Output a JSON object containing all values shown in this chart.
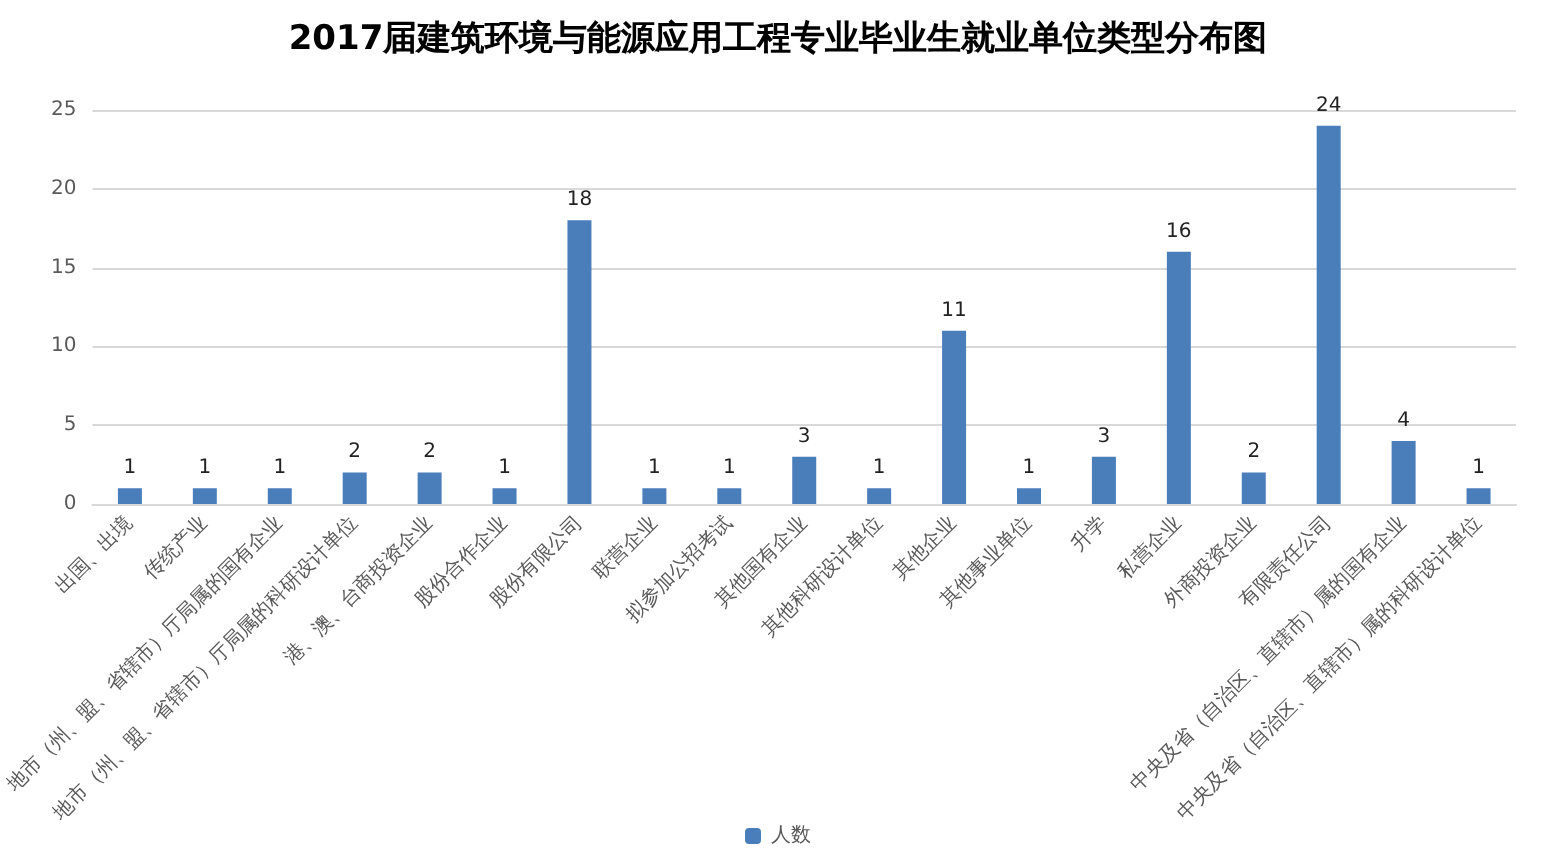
{
  "chart_data": {
    "type": "bar",
    "title": "2017届建筑环境与能源应用工程专业毕业生就业单位类型分布图",
    "categories": [
      "出国、出境",
      "传统产业",
      "地市（州、盟、省辖市）厅局属的国有企业",
      "地市（州、盟、省辖市）厅局属的科研设计单位",
      "港、澳、台商投资企业",
      "股份合作企业",
      "股份有限公司",
      "联营企业",
      "拟参加公招考试",
      "其他国有企业",
      "其他科研设计单位",
      "其他企业",
      "其他事业单位",
      "升学",
      "私营企业",
      "外商投资企业",
      "有限责任公司",
      "中央及省（自治区、直辖市）属的国有企业",
      "中央及省（自治区、直辖市）属的科研设计单位"
    ],
    "series": [
      {
        "name": "人数",
        "color": "#4a7ebb",
        "values": [
          1,
          1,
          1,
          2,
          2,
          1,
          18,
          1,
          1,
          3,
          1,
          11,
          1,
          3,
          16,
          2,
          24,
          4,
          1
        ]
      }
    ],
    "ylim": [
      0,
      25
    ],
    "yticks": [
      0,
      5,
      10,
      15,
      20,
      25
    ],
    "grid": "y",
    "legend": "bottom",
    "data_labels": true
  }
}
